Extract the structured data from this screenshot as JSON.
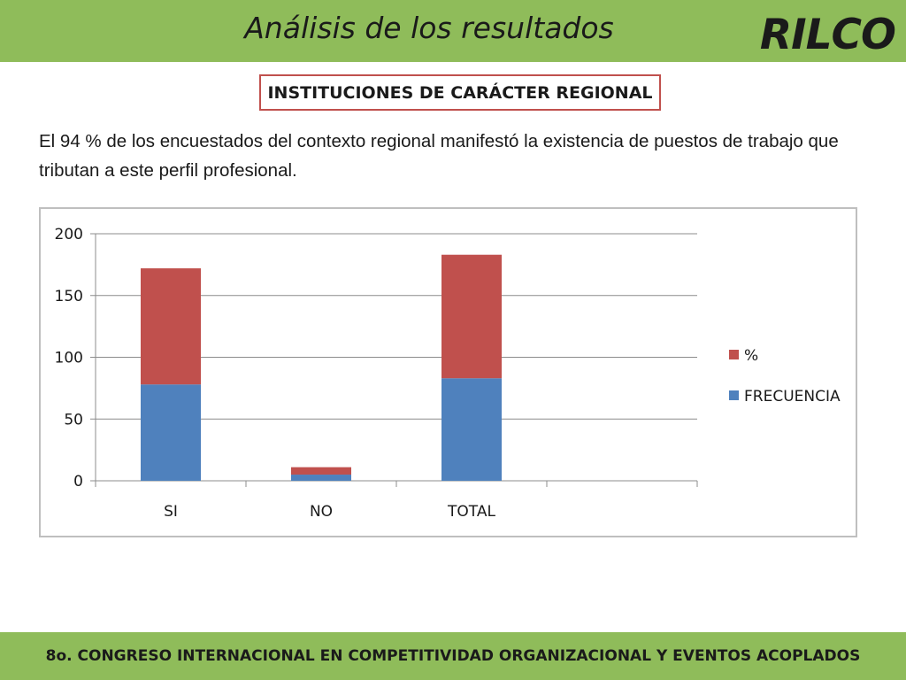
{
  "header": {
    "title": "Análisis de los resultados",
    "brand": "RILCO"
  },
  "section": {
    "heading": "INSTITUCIONES DE CARÁCTER REGIONAL"
  },
  "body": {
    "paragraph": "El 94 % de los encuestados del contexto regional manifestó la existencia de puestos de trabajo que tributan a este perfil profesional."
  },
  "footer": {
    "text": "8o. CONGRESO INTERNACIONAL EN COMPETITIVIDAD ORGANIZACIONAL Y EVENTOS ACOPLADOS"
  },
  "colors": {
    "bar_green": "#8fbc5a",
    "frecuencia": "#4f81bd",
    "percent": "#c0504d",
    "box_border": "#c0504d"
  },
  "chart_data": {
    "type": "bar",
    "stacked": true,
    "categories": [
      "SI",
      "NO",
      "TOTAL"
    ],
    "series": [
      {
        "name": "FRECUENCIA",
        "values": [
          78,
          5,
          83
        ],
        "color": "#4f81bd"
      },
      {
        "name": "%",
        "values": [
          94,
          6,
          100
        ],
        "color": "#c0504d"
      }
    ],
    "ylim": [
      0,
      200
    ],
    "yticks": [
      0,
      50,
      100,
      150,
      200
    ],
    "grid": true,
    "legend": "right"
  }
}
